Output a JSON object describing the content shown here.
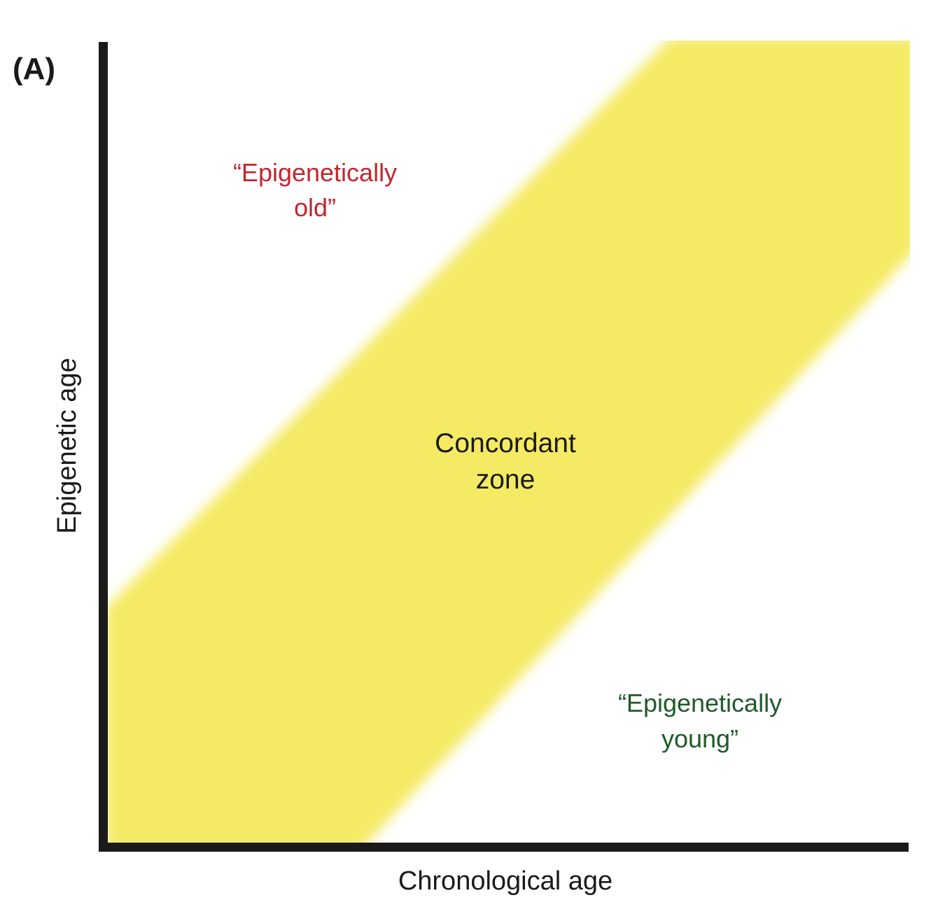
{
  "panel_label": "(A)",
  "axes": {
    "x_label": "Chronological age",
    "y_label": "Epigenetic age"
  },
  "regions": {
    "upper": {
      "lines": [
        "“Epigenetically",
        "old”"
      ],
      "color": "#c1272d"
    },
    "band": {
      "lines": [
        "Concordant",
        "zone"
      ],
      "fill_color": "#f4ea63",
      "text_color": "#1a1a1a"
    },
    "lower": {
      "lines": [
        "“Epigenetically",
        "young”"
      ],
      "color": "#1f5a2a"
    }
  },
  "colors": {
    "axis": "#1a1a1a",
    "text": "#1a1a1a"
  }
}
